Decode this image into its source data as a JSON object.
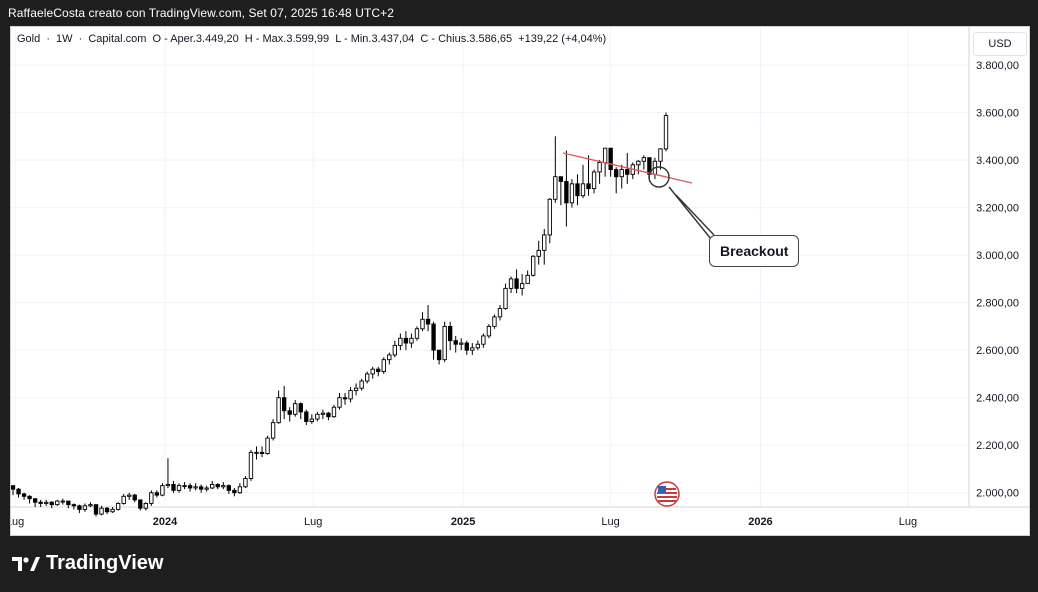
{
  "caption": "RaffaeleCosta creato con TradingView.com, Set 07, 2025 16:48 UTC+2",
  "legend": {
    "symbol": "Gold",
    "interval": "1W",
    "source": "Capital.com",
    "open": "O - Aper.3.449,20",
    "high": "H - Max.3.599,99",
    "low": "L - Min.3.437,04",
    "close": "C - Chius.3.586,65",
    "change": "+139,22 (+4,04%)"
  },
  "currency": "USD",
  "annotation": "Breackout",
  "brand": "TradingView",
  "chart_data": {
    "type": "candlestick",
    "interval": "weekly",
    "y_unit": "USD",
    "ylim": [
      1940,
      3960
    ],
    "yticks": [
      2000,
      2200,
      2400,
      2600,
      2800,
      3000,
      3200,
      3400,
      3600,
      3800
    ],
    "ytick_labels": [
      "2.000,00",
      "2.200,00",
      "2.400,00",
      "2.600,00",
      "2.800,00",
      "3.000,00",
      "3.200,00",
      "3.400,00",
      "3.600,00",
      "3.800,00"
    ],
    "xlim": [
      "2023-06-26",
      "2026-09-14"
    ],
    "xticks": [
      {
        "label": "Lug",
        "date": "2023-07-01"
      },
      {
        "label": "2024",
        "date": "2024-01-01"
      },
      {
        "label": "Lug",
        "date": "2024-07-01"
      },
      {
        "label": "2025",
        "date": "2025-01-01"
      },
      {
        "label": "Lug",
        "date": "2025-07-01"
      },
      {
        "label": "2026",
        "date": "2026-01-01"
      },
      {
        "label": "Lug",
        "date": "2026-07-01"
      }
    ],
    "grid": true,
    "closes": [
      2015,
      1995,
      1985,
      1975,
      1960,
      1955,
      1960,
      1950,
      1965,
      1965,
      1950,
      1945,
      1930,
      1945,
      1950,
      1910,
      1935,
      1920,
      1930,
      1955,
      1985,
      1990,
      1970,
      1935,
      1955,
      2000,
      1990,
      2030,
      2035,
      2010,
      2030,
      2030,
      2020,
      2025,
      2015,
      2020,
      2035,
      2025,
      2030,
      2010,
      2000,
      2025,
      2060,
      2170,
      2170,
      2165,
      2230,
      2295,
      2400,
      2345,
      2330,
      2375,
      2340,
      2300,
      2310,
      2330,
      2335,
      2320,
      2360,
      2400,
      2395,
      2430,
      2440,
      2470,
      2500,
      2520,
      2510,
      2560,
      2580,
      2620,
      2650,
      2630,
      2650,
      2690,
      2730,
      2710,
      2600,
      2560,
      2700,
      2640,
      2625,
      2630,
      2600,
      2610,
      2625,
      2660,
      2700,
      2740,
      2775,
      2860,
      2900,
      2860,
      2880,
      2915,
      2995,
      3020,
      3085,
      3235,
      3330,
      3310,
      3220,
      3300,
      3250,
      3300,
      3280,
      3350,
      3390,
      3450,
      3360,
      3330,
      3360,
      3340,
      3380,
      3395,
      3410,
      3340,
      3395,
      3447,
      3587
    ],
    "opens_first": 2030,
    "lows": [
      1990,
      1980,
      1970,
      1955,
      1940,
      1940,
      1945,
      1935,
      1945,
      1950,
      1935,
      1930,
      1915,
      1920,
      1940,
      1900,
      1905,
      1910,
      1915,
      1925,
      1950,
      1970,
      1960,
      1925,
      1925,
      1945,
      1980,
      1985,
      2020,
      2000,
      2000,
      2015,
      2005,
      2010,
      2000,
      2005,
      2015,
      2015,
      2015,
      1995,
      1985,
      1995,
      2020,
      2050,
      2140,
      2150,
      2160,
      2220,
      2290,
      2310,
      2300,
      2320,
      2310,
      2285,
      2290,
      2300,
      2310,
      2305,
      2315,
      2350,
      2370,
      2380,
      2410,
      2430,
      2460,
      2480,
      2490,
      2500,
      2540,
      2570,
      2600,
      2600,
      2610,
      2640,
      2680,
      2680,
      2560,
      2540,
      2550,
      2600,
      2590,
      2600,
      2580,
      2580,
      2600,
      2610,
      2650,
      2690,
      2725,
      2770,
      2840,
      2840,
      2830,
      2880,
      2910,
      2960,
      2960,
      3050,
      3220,
      3210,
      3120,
      3200,
      3210,
      3240,
      3250,
      3260,
      3300,
      3330,
      3330,
      3260,
      3280,
      3300,
      3320,
      3340,
      3360,
      3310,
      3320,
      3360,
      3437
    ],
    "highs": [
      2030,
      2020,
      2000,
      1990,
      1975,
      1970,
      1970,
      1965,
      1970,
      1975,
      1965,
      1955,
      1950,
      1955,
      1960,
      1950,
      1945,
      1940,
      1940,
      1960,
      1995,
      2000,
      1995,
      1970,
      1960,
      2010,
      2010,
      2040,
      2145,
      2050,
      2040,
      2045,
      2040,
      2040,
      2035,
      2030,
      2050,
      2040,
      2045,
      2035,
      2020,
      2040,
      2070,
      2180,
      2195,
      2195,
      2240,
      2310,
      2430,
      2450,
      2360,
      2390,
      2380,
      2350,
      2330,
      2340,
      2350,
      2340,
      2370,
      2420,
      2420,
      2445,
      2460,
      2480,
      2510,
      2530,
      2530,
      2570,
      2590,
      2640,
      2670,
      2680,
      2670,
      2700,
      2760,
      2790,
      2720,
      2600,
      2720,
      2720,
      2660,
      2650,
      2640,
      2630,
      2640,
      2670,
      2710,
      2750,
      2790,
      2880,
      2910,
      2940,
      2920,
      2935,
      3000,
      3060,
      3110,
      3240,
      3500,
      3330,
      3440,
      3320,
      3340,
      3380,
      3420,
      3360,
      3400,
      3450,
      3450,
      3370,
      3380,
      3430,
      3390,
      3400,
      3420,
      3410,
      3410,
      3450,
      3600
    ]
  }
}
